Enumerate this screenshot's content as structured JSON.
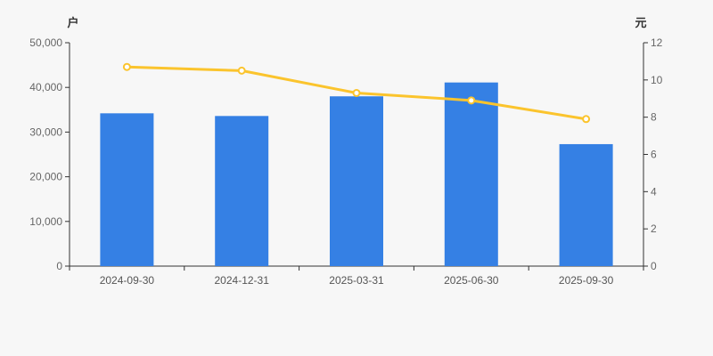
{
  "background_color": "#f7f7f7",
  "axis_line_color": "#333333",
  "tick_label_color": "#666666",
  "chart_data": {
    "type": "bar",
    "subtype": "bar-line-combo",
    "categories": [
      "2024-09-30",
      "2024-12-31",
      "2025-03-31",
      "2025-06-30",
      "2025-09-30"
    ],
    "series": [
      {
        "name": "户",
        "type": "bar",
        "axis": "left",
        "color": "#3580e4",
        "values": [
          34200,
          33600,
          38000,
          41100,
          27300
        ]
      },
      {
        "name": "元",
        "type": "line",
        "axis": "right",
        "color": "#fbc42d",
        "marker": "hollow-circle",
        "marker_fill": "#ffffff",
        "values": [
          10.7,
          10.5,
          9.3,
          8.9,
          7.9
        ]
      }
    ],
    "axes": {
      "left": {
        "unit": "户",
        "min": 0,
        "max": 50000,
        "tick_step": 10000,
        "tick_labels": [
          "0",
          "10,000",
          "20,000",
          "30,000",
          "40,000",
          "50,000"
        ]
      },
      "right": {
        "unit": "元",
        "min": 0,
        "max": 12,
        "tick_step": 2,
        "tick_labels": [
          "0",
          "2",
          "4",
          "6",
          "8",
          "10",
          "12"
        ]
      }
    },
    "grid": false,
    "legend_position": "none"
  }
}
